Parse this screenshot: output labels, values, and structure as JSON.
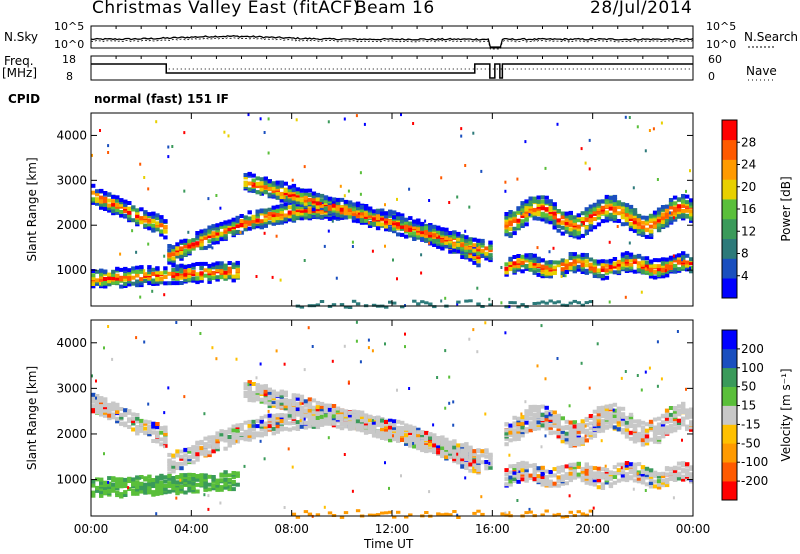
{
  "header": {
    "title": "Christmas Valley East (fitACF)",
    "beam": "Beam 16",
    "date": "28/Jul/2014"
  },
  "top_panels": {
    "nsky_label": "N.Sky",
    "nsky_ticks": [
      "10^5",
      "10^0"
    ],
    "nsearch_label": "N.Search",
    "nsearch_ticks": [
      "10^5",
      "10^0"
    ],
    "freq_label_1": "Freq.",
    "freq_label_2": "[MHz]",
    "freq_ticks": [
      "18",
      "8"
    ],
    "nave_label": "Nave",
    "nave_ticks": [
      "60",
      "0"
    ],
    "cpid_label": "CPID",
    "cpid_value": "normal (fast) 151 IF"
  },
  "colors": {
    "power": [
      "#0000ff",
      "#1a4fbf",
      "#2d7a7a",
      "#3a9a5a",
      "#5abf3a",
      "#e8d000",
      "#ff9a00",
      "#ff5a00",
      "#ff0000"
    ],
    "velocity": [
      "#ff0000",
      "#ff5a00",
      "#ff9a00",
      "#ffc000",
      "#c8c8c8",
      "#5abf3a",
      "#3a9a5a",
      "#1a4fbf",
      "#0000ff"
    ]
  },
  "chart_data": [
    {
      "type": "heatmap",
      "name": "Power",
      "ylabel": "Slant Range [km]",
      "xlabel": "Time UT",
      "x_ticks": [
        "00:00",
        "04:00",
        "08:00",
        "12:00",
        "16:00",
        "20:00",
        "00:00"
      ],
      "y_ticks": [
        1000,
        2000,
        3000,
        4000
      ],
      "ylim": [
        200,
        4500
      ],
      "xlim_hours": [
        0,
        24
      ],
      "colorbar_label": "Power [dB]",
      "colorbar_ticks": [
        "4",
        "8",
        "12",
        "16",
        "20",
        "24",
        "28"
      ],
      "colorbar_range": [
        0,
        32
      ]
    },
    {
      "type": "heatmap",
      "name": "Velocity",
      "ylabel": "Slant Range [km]",
      "xlabel": "Time UT",
      "x_ticks": [
        "00:00",
        "04:00",
        "08:00",
        "12:00",
        "16:00",
        "20:00",
        "00:00"
      ],
      "y_ticks": [
        1000,
        2000,
        3000,
        4000
      ],
      "ylim": [
        200,
        4500
      ],
      "xlim_hours": [
        0,
        24
      ],
      "colorbar_label": "Velocity [m s⁻¹]",
      "colorbar_ticks": [
        "-200",
        "-100",
        "-50",
        "-15",
        "15",
        "50",
        "100",
        "200"
      ]
    }
  ],
  "xaxis_title": "Time UT"
}
